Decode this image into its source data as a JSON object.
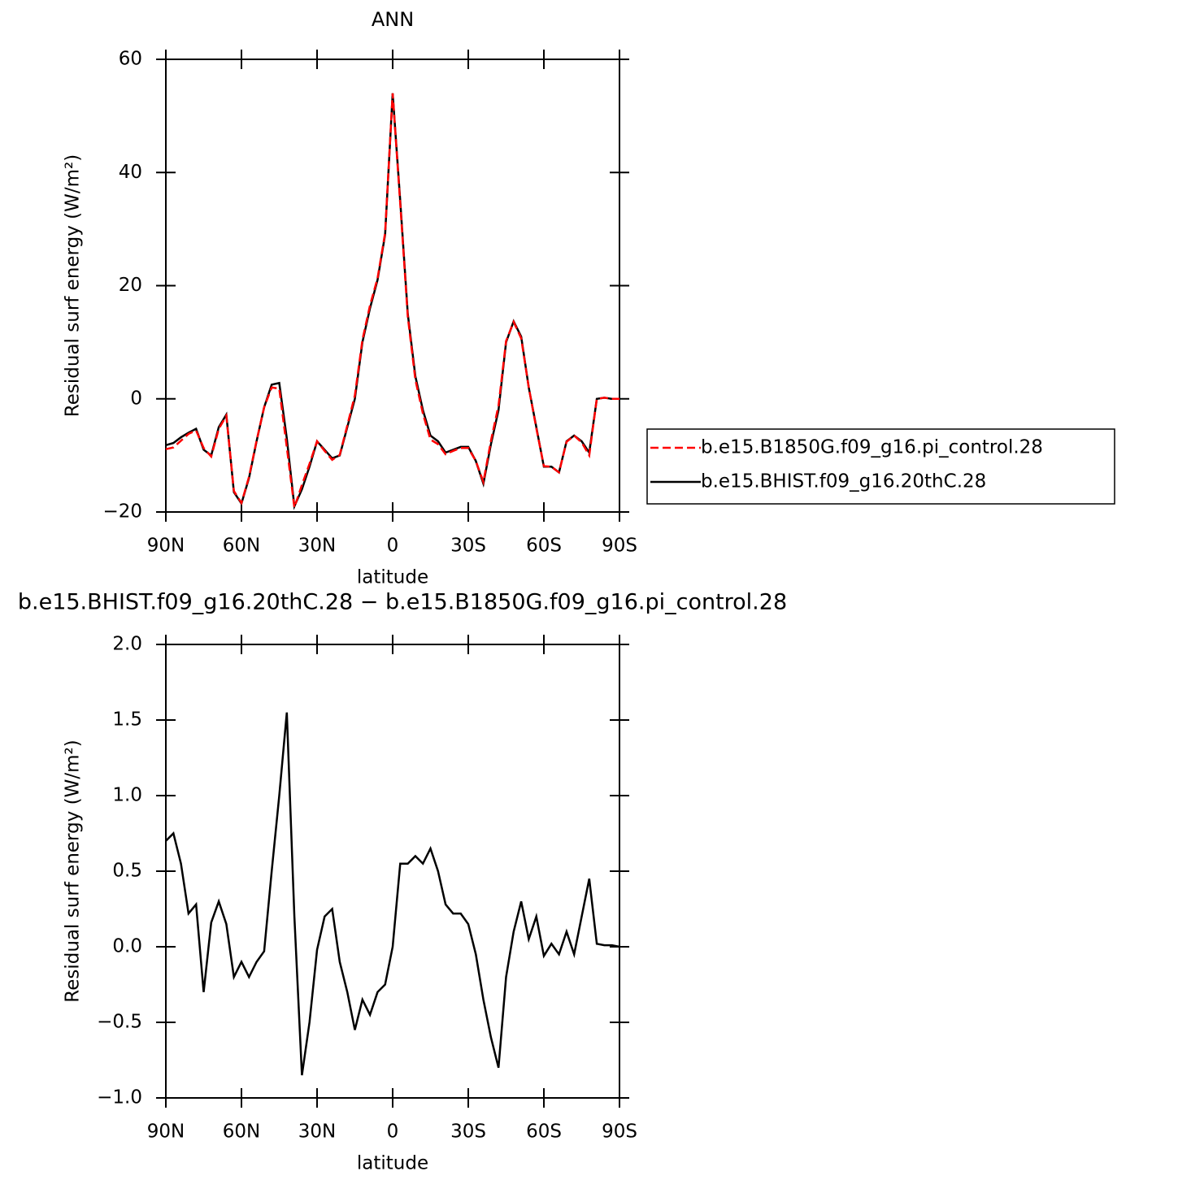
{
  "chart_data": [
    {
      "type": "line",
      "title": "ANN",
      "xlabel": "latitude",
      "ylabel": "Residual surf energy (W/m²)",
      "x": [
        90,
        87,
        84,
        81,
        78,
        75,
        72,
        69,
        66,
        63,
        60,
        57,
        54,
        51,
        48,
        45,
        42,
        39,
        36,
        33,
        30,
        27,
        24,
        21,
        18,
        15,
        12,
        9,
        6,
        3,
        0,
        -3,
        -6,
        -9,
        -12,
        -15,
        -18,
        -21,
        -24,
        -27,
        -30,
        -33,
        -36,
        -39,
        -42,
        -45,
        -48,
        -51,
        -54,
        -57,
        -60,
        -63,
        -66,
        -69,
        -72,
        -75,
        -78,
        -81,
        -84,
        -87,
        -90
      ],
      "series": [
        {
          "name": "b.e15.B1850G.f09_g16.pi_control.28",
          "color": "#ff0000",
          "dash": true,
          "values": [
            -8.9,
            -8.6,
            -7.4,
            -6.2,
            -5.6,
            -8.7,
            -10.2,
            -5.3,
            -3.0,
            -16.3,
            -18.4,
            -13.8,
            -7.4,
            -1.5,
            2.0,
            1.8,
            -8.6,
            -19.2,
            -15.2,
            -11.5,
            -7.5,
            -9.2,
            -10.8,
            -9.9,
            -4.7,
            0.6,
            10.4,
            16.5,
            21.3,
            29.3,
            54,
            34.5,
            14.5,
            3.4,
            -2.6,
            -7.2,
            -8.0,
            -9.8,
            -9.2,
            -8.7,
            -8.7,
            -11,
            -14.7,
            -7.4,
            -1.2,
            10.2,
            13.6,
            10.7,
            2,
            -5.2,
            -11.9,
            -12,
            -13,
            -7.6,
            -6.5,
            -7.7,
            -10,
            0,
            0.2,
            0,
            0
          ]
        },
        {
          "name": "b.e15.BHIST.f09_g16.20thC.28",
          "color": "#000000",
          "dash": false,
          "values": [
            -8.2,
            -7.8,
            -6.8,
            -6,
            -5.3,
            -9,
            -10,
            -5,
            -2.8,
            -16.5,
            -18.5,
            -14,
            -7.5,
            -1.5,
            2.5,
            2.8,
            -7,
            -19,
            -16,
            -12,
            -7.5,
            -9,
            -10.5,
            -10,
            -5,
            0,
            10,
            16,
            21,
            29,
            54,
            35,
            15,
            4,
            -2,
            -6.5,
            -7.5,
            -9.5,
            -9,
            -8.5,
            -8.5,
            -11,
            -15,
            -8,
            -2,
            10,
            13.7,
            11,
            2,
            -5,
            -12,
            -12,
            -13,
            -7.5,
            -6.5,
            -7.5,
            -9.5,
            0,
            0.2,
            0,
            0
          ]
        }
      ],
      "xlim": [
        90,
        -90
      ],
      "xticks": [
        {
          "value": 90,
          "label": "90N"
        },
        {
          "value": 60,
          "label": "60N"
        },
        {
          "value": 30,
          "label": "30N"
        },
        0,
        {
          "value": -30,
          "label": "30S"
        },
        {
          "value": -60,
          "label": "60S"
        },
        {
          "value": -90,
          "label": "90S"
        }
      ],
      "ylim": [
        -20,
        60
      ],
      "yticks": [
        {
          "value": -20,
          "label": "−20"
        },
        0,
        20,
        40,
        60
      ],
      "legend": "right"
    },
    {
      "type": "line",
      "title": "b.e15.BHIST.f09_g16.20thC.28 − b.e15.B1850G.f09_g16.pi_control.28",
      "xlabel": "latitude",
      "ylabel": "Residual surf energy (W/m²)",
      "x": [
        90,
        87,
        84,
        81,
        78,
        75,
        72,
        69,
        66,
        63,
        60,
        57,
        54,
        51,
        48,
        45,
        42,
        39,
        36,
        33,
        30,
        27,
        24,
        21,
        18,
        15,
        12,
        9,
        6,
        3,
        0,
        -3,
        -6,
        -9,
        -12,
        -15,
        -18,
        -21,
        -24,
        -27,
        -30,
        -33,
        -36,
        -39,
        -42,
        -45,
        -48,
        -51,
        -54,
        -57,
        -60,
        -63,
        -66,
        -69,
        -72,
        -75,
        -78,
        -81,
        -84,
        -87,
        -90
      ],
      "series": [
        {
          "color": "#000000",
          "dash": false,
          "values": [
            0.7,
            0.75,
            0.55,
            0.22,
            0.28,
            -0.3,
            0.16,
            0.3,
            0.15,
            -0.2,
            -0.1,
            -0.2,
            -0.1,
            -0.03,
            0.5,
            1.0,
            1.55,
            0.2,
            -0.85,
            -0.5,
            -0.02,
            0.2,
            0.25,
            -0.1,
            -0.3,
            -0.55,
            -0.35,
            -0.45,
            -0.3,
            -0.25,
            0.0,
            0.55,
            0.55,
            0.6,
            0.55,
            0.65,
            0.5,
            0.28,
            0.22,
            0.22,
            0.15,
            -0.05,
            -0.35,
            -0.6,
            -0.8,
            -0.2,
            0.1,
            0.3,
            0.05,
            0.2,
            -0.06,
            0.02,
            -0.05,
            0.1,
            -0.05,
            0.2,
            0.45,
            0.02,
            0.01,
            0.01,
            0.0
          ]
        }
      ],
      "xlim": [
        90,
        -90
      ],
      "xticks": [
        {
          "value": 90,
          "label": "90N"
        },
        {
          "value": 60,
          "label": "60N"
        },
        {
          "value": 30,
          "label": "30N"
        },
        0,
        {
          "value": -30,
          "label": "30S"
        },
        {
          "value": -60,
          "label": "60S"
        },
        {
          "value": -90,
          "label": "90S"
        }
      ],
      "ylim": [
        -1.0,
        2.0
      ],
      "yticks": [
        {
          "value": -1.0,
          "label": "−1.0"
        },
        {
          "value": -0.5,
          "label": "−0.5"
        },
        {
          "value": 0.0,
          "label": "0.0"
        },
        {
          "value": 0.5,
          "label": "0.5"
        },
        {
          "value": 1.0,
          "label": "1.0"
        },
        {
          "value": 1.5,
          "label": "1.5"
        },
        {
          "value": 2.0,
          "label": "2.0"
        }
      ]
    }
  ]
}
